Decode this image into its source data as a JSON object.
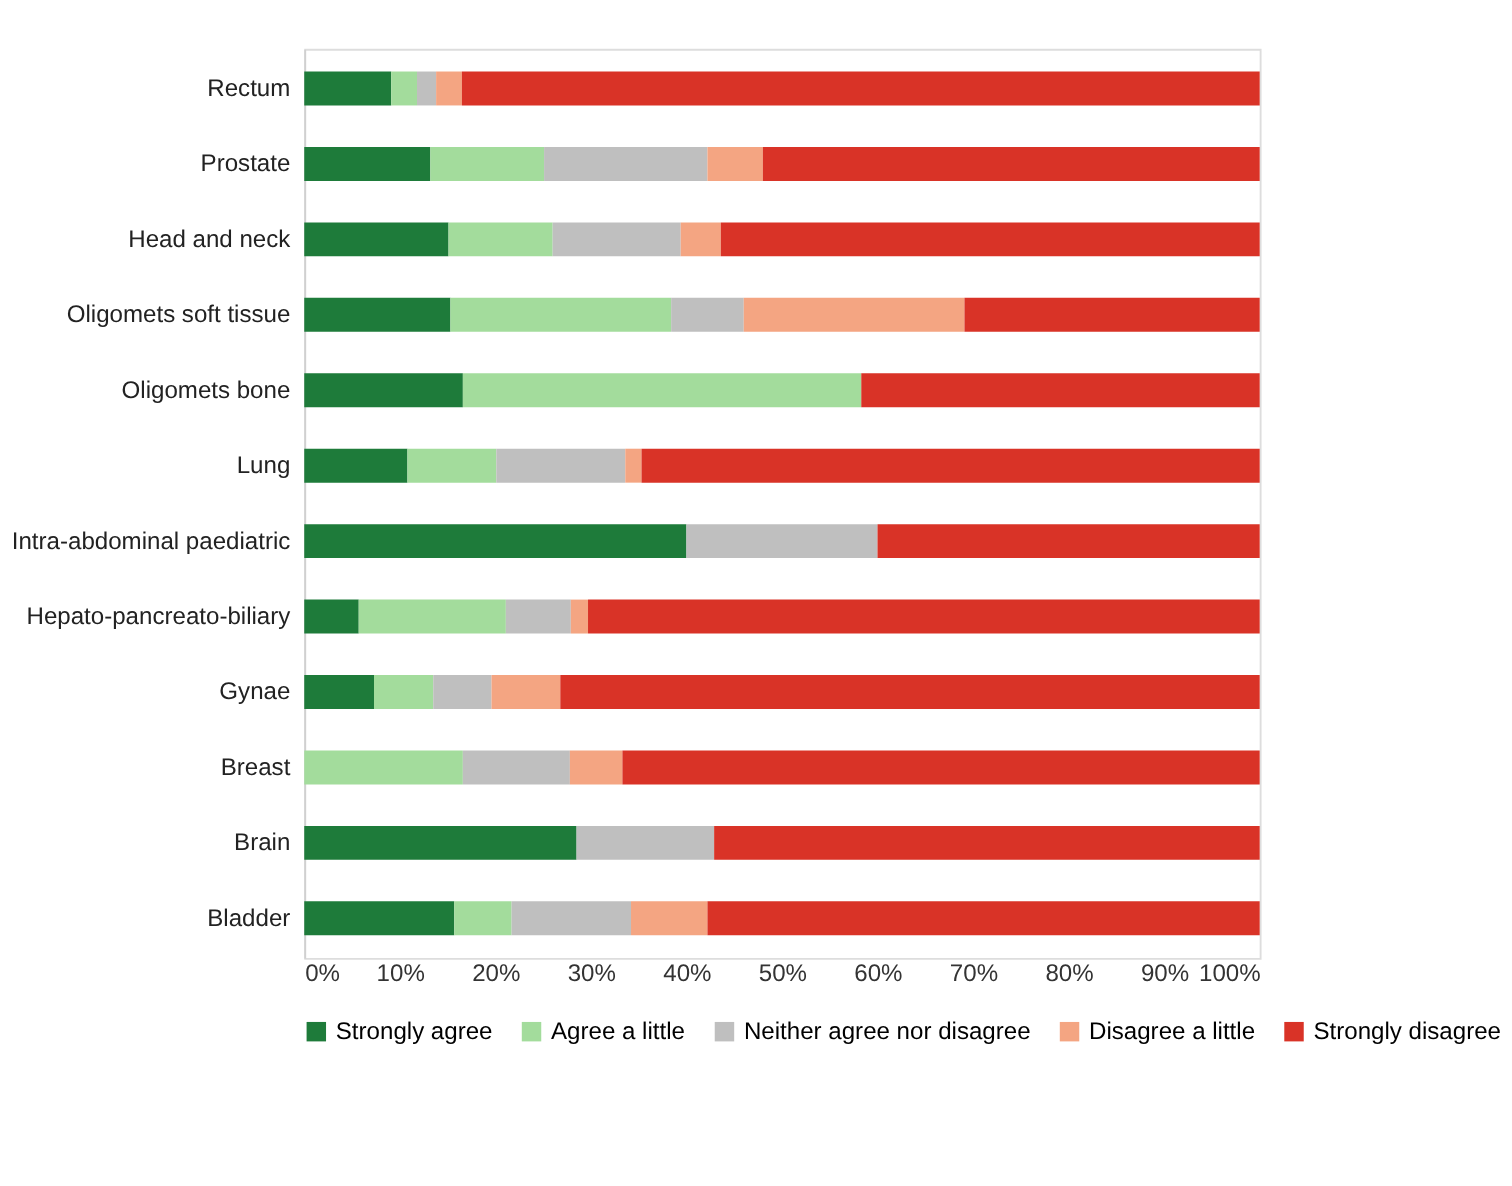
{
  "chart_data": {
    "type": "bar",
    "orientation": "horizontal",
    "stacked": true,
    "categories": [
      "Rectum",
      "Prostate",
      "Head and neck",
      "Oligomets soft tissue",
      "Oligomets bone",
      "Lung",
      "Intra-abdominal paediatric",
      "Hepato-pancreato-biliary",
      "Gynae",
      "Breast",
      "Brain",
      "Bladder"
    ],
    "series": [
      {
        "name": "Strongly agree",
        "color": "#1e7b3a",
        "values": [
          9.1,
          13.2,
          15.1,
          15.3,
          16.6,
          10.8,
          40.0,
          5.7,
          7.3,
          0,
          28.5,
          15.7
        ]
      },
      {
        "name": "Agree a little",
        "color": "#a3dc9c",
        "values": [
          2.7,
          11.9,
          10.9,
          23.1,
          41.7,
          9.3,
          0,
          15.4,
          6.2,
          16.6,
          0,
          6.0
        ]
      },
      {
        "name": "Neither agree nor disagree",
        "color": "#bfbfbf",
        "values": [
          2.0,
          17.1,
          13.4,
          7.6,
          0,
          13.5,
          20.0,
          6.8,
          6.1,
          11.2,
          14.4,
          12.5
        ]
      },
      {
        "name": "Disagree a little",
        "color": "#f4a582",
        "values": [
          2.7,
          5.8,
          4.2,
          23.1,
          0,
          1.7,
          0,
          1.8,
          7.2,
          5.5,
          0,
          8.0
        ]
      },
      {
        "name": "Strongly disagree",
        "color": "#d93327",
        "values": [
          83.5,
          52.0,
          56.4,
          30.9,
          41.7,
          64.7,
          40.0,
          70.3,
          73.2,
          66.7,
          57.1,
          57.8
        ]
      }
    ],
    "xlim": [
      0,
      100
    ],
    "xticks": [
      {
        "value": 0,
        "label": "0%"
      },
      {
        "value": 10,
        "label": "10%"
      },
      {
        "value": 20,
        "label": "20%"
      },
      {
        "value": 30,
        "label": "30%"
      },
      {
        "value": 40,
        "label": "40%"
      },
      {
        "value": 50,
        "label": "50%"
      },
      {
        "value": 60,
        "label": "60%"
      },
      {
        "value": 70,
        "label": "70%"
      },
      {
        "value": 80,
        "label": "80%"
      },
      {
        "value": 90,
        "label": "90%"
      },
      {
        "value": 100,
        "label": "100%"
      }
    ],
    "grid": false,
    "legend": "bottom"
  }
}
